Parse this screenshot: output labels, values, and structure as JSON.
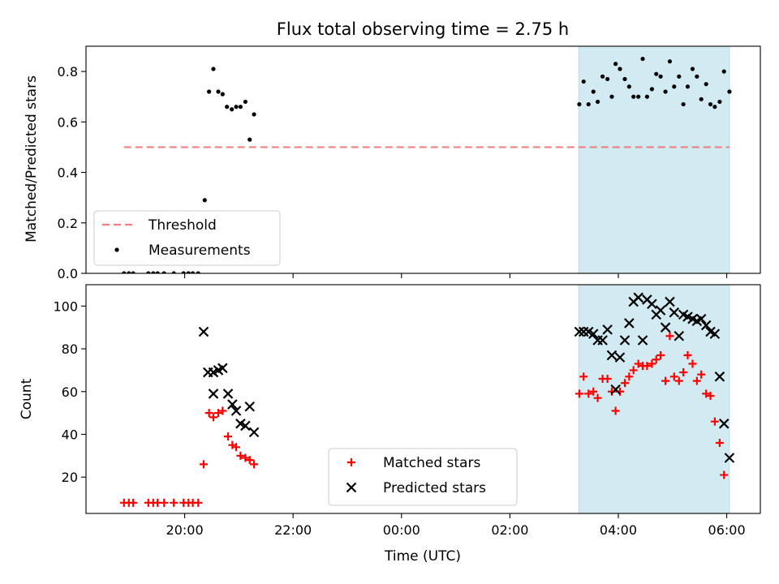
{
  "chart_data": [
    {
      "type": "scatter",
      "panel": "top",
      "title": "Flux total observing time = 2.75 h",
      "xlabel": "",
      "ylabel": "Matched/Predicted stars",
      "ylim": [
        0,
        0.9
      ],
      "xlim": [
        18.18,
        30.62
      ],
      "yticks": [
        0.0,
        0.2,
        0.4,
        0.6,
        0.8
      ],
      "yticklabels": [
        "0.0",
        "0.2",
        "0.4",
        "0.6",
        "0.8"
      ],
      "shaded_region": {
        "x0": 27.27,
        "x1": 30.05,
        "color": "#add8e6"
      },
      "threshold": {
        "name": "Threshold",
        "y": 0.5,
        "x0": 18.88,
        "x1": 30.05,
        "color": "#f08080"
      },
      "series": [
        {
          "name": "Measurements",
          "marker": "dot",
          "color": "#000000",
          "points": [
            [
              18.88,
              0.0
            ],
            [
              18.97,
              0.0
            ],
            [
              19.05,
              0.0
            ],
            [
              19.33,
              0.0
            ],
            [
              19.42,
              0.0
            ],
            [
              19.5,
              0.0
            ],
            [
              19.62,
              0.0
            ],
            [
              19.8,
              0.0
            ],
            [
              19.98,
              0.0
            ],
            [
              20.07,
              0.0
            ],
            [
              20.15,
              0.0
            ],
            [
              20.25,
              0.0
            ],
            [
              20.37,
              0.29
            ],
            [
              20.45,
              0.72
            ],
            [
              20.53,
              0.81
            ],
            [
              20.62,
              0.72
            ],
            [
              20.7,
              0.71
            ],
            [
              20.78,
              0.66
            ],
            [
              20.87,
              0.65
            ],
            [
              20.95,
              0.66
            ],
            [
              21.03,
              0.66
            ],
            [
              21.12,
              0.68
            ],
            [
              21.2,
              0.53
            ],
            [
              21.28,
              0.63
            ],
            [
              27.28,
              0.67
            ],
            [
              27.36,
              0.76
            ],
            [
              27.45,
              0.67
            ],
            [
              27.54,
              0.72
            ],
            [
              27.62,
              0.68
            ],
            [
              27.71,
              0.78
            ],
            [
              27.8,
              0.77
            ],
            [
              27.88,
              0.7
            ],
            [
              27.95,
              0.83
            ],
            [
              28.03,
              0.81
            ],
            [
              28.12,
              0.77
            ],
            [
              28.2,
              0.74
            ],
            [
              28.28,
              0.7
            ],
            [
              28.37,
              0.7
            ],
            [
              28.45,
              0.85
            ],
            [
              28.53,
              0.7
            ],
            [
              28.62,
              0.73
            ],
            [
              28.7,
              0.79
            ],
            [
              28.78,
              0.78
            ],
            [
              28.87,
              0.72
            ],
            [
              28.95,
              0.84
            ],
            [
              29.03,
              0.74
            ],
            [
              29.12,
              0.78
            ],
            [
              29.2,
              0.67
            ],
            [
              29.28,
              0.74
            ],
            [
              29.37,
              0.81
            ],
            [
              29.45,
              0.78
            ],
            [
              29.53,
              0.69
            ],
            [
              29.62,
              0.75
            ],
            [
              29.7,
              0.67
            ],
            [
              29.78,
              0.66
            ],
            [
              29.87,
              0.68
            ],
            [
              29.95,
              0.8
            ],
            [
              30.05,
              0.72
            ]
          ]
        }
      ],
      "legend": {
        "placement": "lower-left",
        "entries": [
          "Threshold",
          "Measurements"
        ]
      }
    },
    {
      "type": "scatter",
      "panel": "bottom",
      "xlabel": "Time (UTC)",
      "ylabel": "Count",
      "ylim": [
        3,
        110
      ],
      "xlim": [
        18.18,
        30.62
      ],
      "yticks": [
        20,
        40,
        60,
        80,
        100
      ],
      "yticklabels": [
        "20",
        "40",
        "60",
        "80",
        "100"
      ],
      "xticks": [
        20,
        22,
        24,
        26,
        28,
        30
      ],
      "xticklabels": [
        "20:00",
        "22:00",
        "00:00",
        "02:00",
        "04:00",
        "06:00"
      ],
      "shaded_region": {
        "x0": 27.27,
        "x1": 30.05,
        "color": "#add8e6"
      },
      "series": [
        {
          "name": "Matched stars",
          "marker": "plus",
          "color": "#ff0000",
          "points": [
            [
              18.88,
              8
            ],
            [
              18.97,
              8
            ],
            [
              19.05,
              8
            ],
            [
              19.33,
              8
            ],
            [
              19.42,
              8
            ],
            [
              19.5,
              8
            ],
            [
              19.62,
              8
            ],
            [
              19.8,
              8
            ],
            [
              19.98,
              8
            ],
            [
              20.07,
              8
            ],
            [
              20.15,
              8
            ],
            [
              20.25,
              8
            ],
            [
              20.35,
              26
            ],
            [
              20.45,
              50
            ],
            [
              20.53,
              48
            ],
            [
              20.62,
              50
            ],
            [
              20.7,
              51
            ],
            [
              20.8,
              39
            ],
            [
              20.88,
              35
            ],
            [
              20.95,
              34
            ],
            [
              21.03,
              30
            ],
            [
              21.12,
              29
            ],
            [
              21.2,
              28
            ],
            [
              21.28,
              26
            ],
            [
              27.28,
              59
            ],
            [
              27.36,
              67
            ],
            [
              27.45,
              59
            ],
            [
              27.54,
              60
            ],
            [
              27.62,
              57
            ],
            [
              27.71,
              66
            ],
            [
              27.8,
              66
            ],
            [
              27.88,
              60
            ],
            [
              27.95,
              51
            ],
            [
              28.03,
              60
            ],
            [
              28.12,
              64
            ],
            [
              28.2,
              67
            ],
            [
              28.28,
              70
            ],
            [
              28.37,
              73
            ],
            [
              28.45,
              72
            ],
            [
              28.53,
              72
            ],
            [
              28.62,
              73
            ],
            [
              28.7,
              75
            ],
            [
              28.78,
              77
            ],
            [
              28.87,
              65
            ],
            [
              28.95,
              86
            ],
            [
              29.03,
              67
            ],
            [
              29.12,
              65
            ],
            [
              29.2,
              69
            ],
            [
              29.28,
              77
            ],
            [
              29.37,
              73
            ],
            [
              29.45,
              65
            ],
            [
              29.53,
              68
            ],
            [
              29.62,
              59
            ],
            [
              29.7,
              58
            ],
            [
              29.78,
              46
            ],
            [
              29.87,
              36
            ],
            [
              29.95,
              21
            ]
          ]
        },
        {
          "name": "Predicted stars",
          "marker": "x",
          "color": "#000000",
          "points": [
            [
              20.35,
              88
            ],
            [
              20.43,
              69
            ],
            [
              20.53,
              59
            ],
            [
              20.53,
              69
            ],
            [
              20.62,
              70
            ],
            [
              20.7,
              71
            ],
            [
              20.8,
              59
            ],
            [
              20.88,
              54
            ],
            [
              20.95,
              51
            ],
            [
              21.03,
              45
            ],
            [
              21.12,
              44
            ],
            [
              21.2,
              53
            ],
            [
              21.28,
              41
            ],
            [
              27.28,
              88
            ],
            [
              27.36,
              88
            ],
            [
              27.45,
              88
            ],
            [
              27.54,
              87
            ],
            [
              27.62,
              84
            ],
            [
              27.71,
              84
            ],
            [
              27.8,
              89
            ],
            [
              27.88,
              77
            ],
            [
              27.95,
              61
            ],
            [
              28.03,
              76
            ],
            [
              28.12,
              84
            ],
            [
              28.2,
              92
            ],
            [
              28.28,
              102
            ],
            [
              28.37,
              104
            ],
            [
              28.45,
              84
            ],
            [
              28.53,
              103
            ],
            [
              28.62,
              101
            ],
            [
              28.7,
              96
            ],
            [
              28.78,
              98
            ],
            [
              28.87,
              90
            ],
            [
              28.95,
              102
            ],
            [
              29.03,
              97
            ],
            [
              29.12,
              86
            ],
            [
              29.2,
              96
            ],
            [
              29.28,
              95
            ],
            [
              29.37,
              94
            ],
            [
              29.45,
              93
            ],
            [
              29.53,
              94
            ],
            [
              29.62,
              91
            ],
            [
              29.7,
              88
            ],
            [
              29.78,
              87
            ],
            [
              29.87,
              67
            ],
            [
              29.95,
              45
            ],
            [
              30.05,
              29
            ]
          ]
        }
      ],
      "legend": {
        "placement": "lower-center",
        "entries": [
          "Matched stars",
          "Predicted stars"
        ]
      }
    }
  ]
}
